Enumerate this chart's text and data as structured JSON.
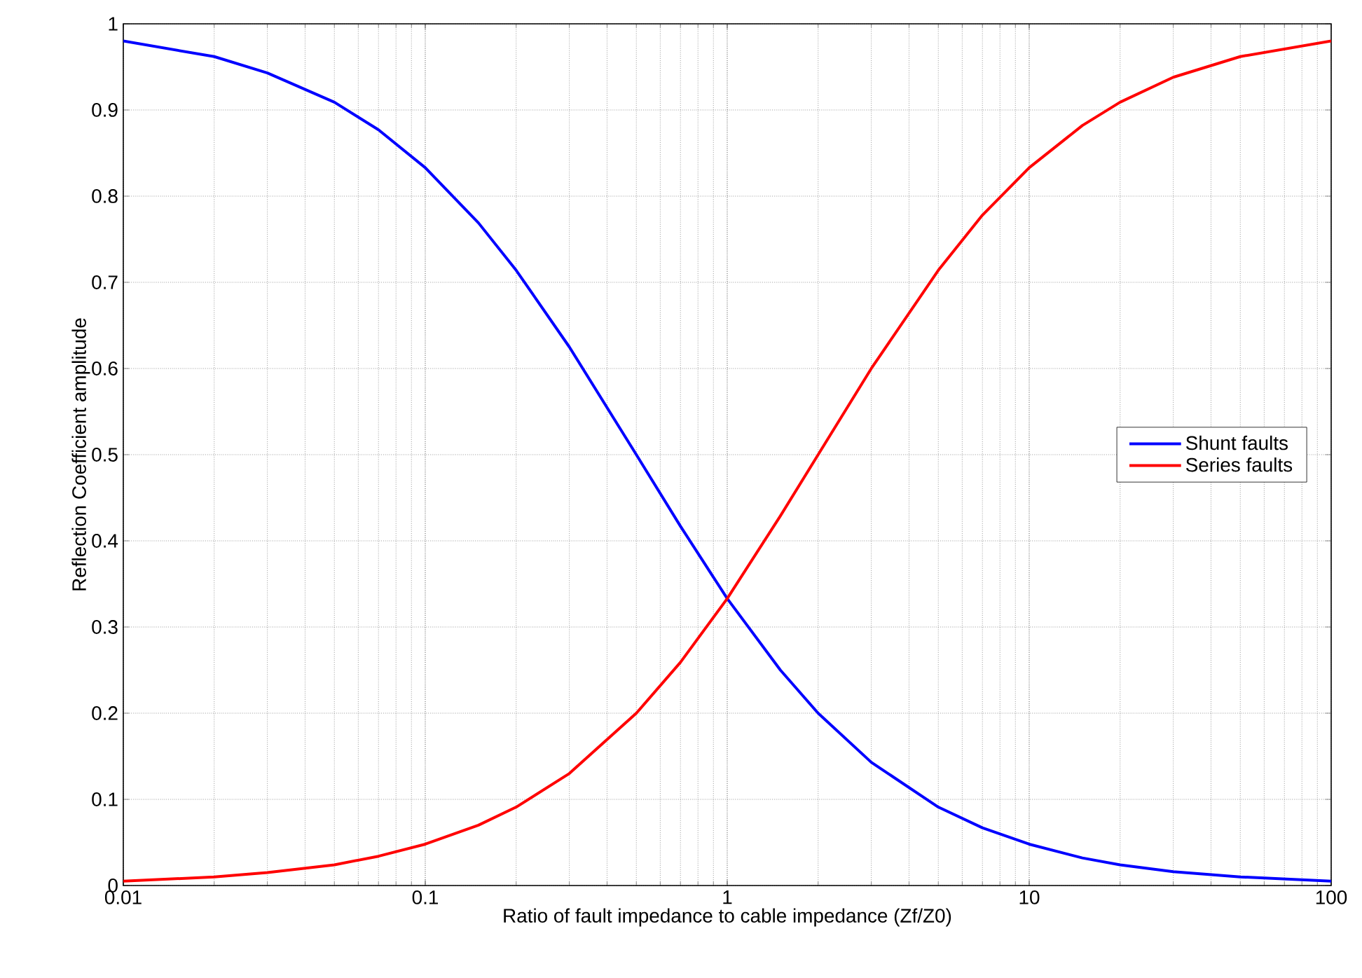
{
  "chart_data": {
    "type": "line",
    "xlabel": "Ratio of fault impedance to cable impedance (Zf/Z0)",
    "ylabel": "Reflection Coefficient amplitude",
    "log": "x",
    "grid": true,
    "legend": "right",
    "line_style": "solid",
    "marker": "none",
    "xlim": [
      0.01,
      100
    ],
    "ylim": [
      0,
      1
    ],
    "xticks": [
      0.01,
      0.1,
      1,
      10,
      100
    ],
    "yticks": [
      0,
      0.1,
      0.2,
      0.3,
      0.4,
      0.5,
      0.6,
      0.7,
      0.8,
      0.9,
      1
    ],
    "series": [
      {
        "name": "Shunt faults",
        "color": "#0000ff",
        "x": [
          0.01,
          0.02,
          0.03,
          0.05,
          0.07,
          0.1,
          0.15,
          0.2,
          0.3,
          0.5,
          0.7,
          1,
          1.5,
          2,
          3,
          5,
          7,
          10,
          15,
          20,
          30,
          50,
          100
        ],
        "values": [
          0.98,
          0.962,
          0.943,
          0.909,
          0.877,
          0.833,
          0.769,
          0.714,
          0.625,
          0.5,
          0.417,
          0.333,
          0.25,
          0.2,
          0.143,
          0.091,
          0.067,
          0.048,
          0.032,
          0.024,
          0.016,
          0.01,
          0.005
        ]
      },
      {
        "name": "Series faults",
        "color": "#ff0000",
        "x": [
          0.01,
          0.02,
          0.03,
          0.05,
          0.07,
          0.1,
          0.15,
          0.2,
          0.3,
          0.5,
          0.7,
          1,
          1.5,
          2,
          3,
          5,
          7,
          10,
          15,
          20,
          30,
          50,
          100
        ],
        "values": [
          0.005,
          0.01,
          0.015,
          0.024,
          0.034,
          0.048,
          0.07,
          0.091,
          0.13,
          0.2,
          0.259,
          0.333,
          0.429,
          0.5,
          0.6,
          0.714,
          0.778,
          0.833,
          0.882,
          0.909,
          0.938,
          0.962,
          0.98
        ]
      }
    ]
  }
}
